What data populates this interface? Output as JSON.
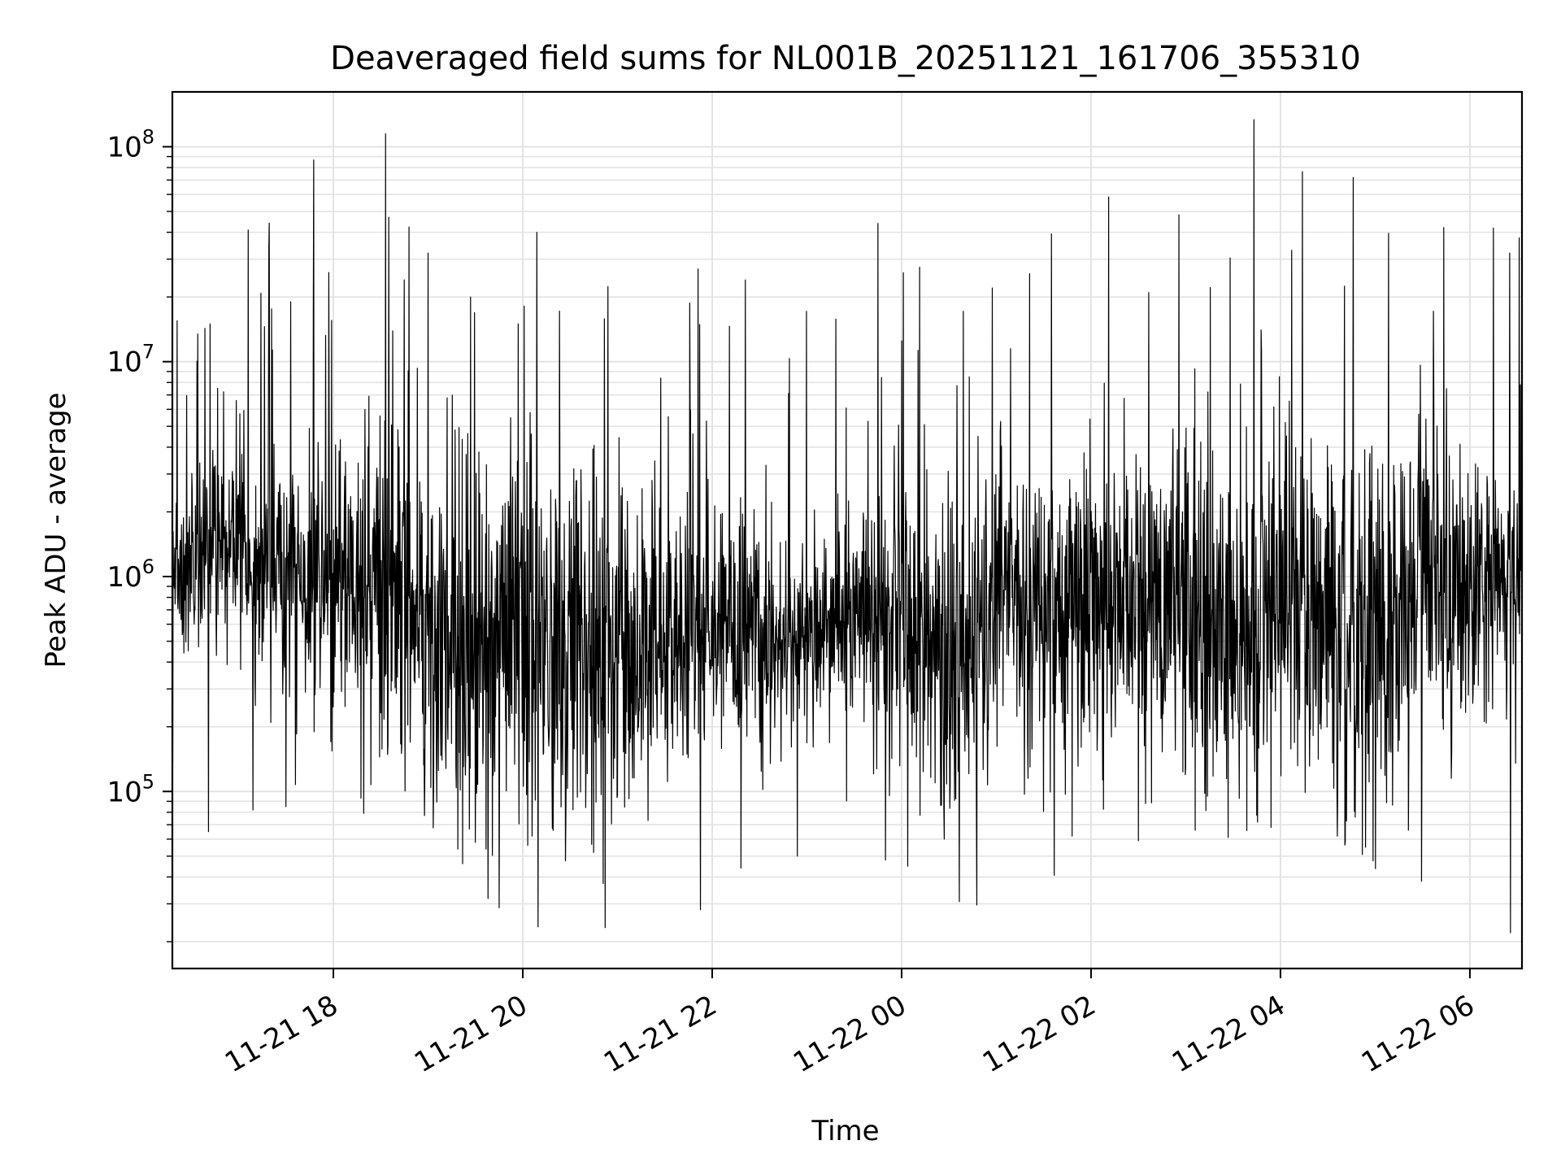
{
  "chart_data": {
    "type": "line",
    "title": "Deaveraged field sums for NL001B_20251121_161706_355310",
    "xlabel": "Time",
    "ylabel": "Peak ADU - average",
    "yscale": "log",
    "ylim": [
      15000,
      180000000
    ],
    "xlim_hours_from_2025_11_21_00_00": [
      16.3,
      30.55
    ],
    "grid": true,
    "xticks": [
      {
        "label": "11-21 18",
        "hour": 18
      },
      {
        "label": "11-21 20",
        "hour": 20
      },
      {
        "label": "11-21 22",
        "hour": 22
      },
      {
        "label": "11-22 00",
        "hour": 24
      },
      {
        "label": "11-22 02",
        "hour": 26
      },
      {
        "label": "11-22 04",
        "hour": 28
      },
      {
        "label": "11-22 06",
        "hour": 30
      }
    ],
    "yticks": [
      {
        "base": "10",
        "exp": "5",
        "value": 100000
      },
      {
        "base": "10",
        "exp": "6",
        "value": 1000000
      },
      {
        "base": "10",
        "exp": "7",
        "value": 10000000
      },
      {
        "base": "10",
        "exp": "8",
        "value": 100000000
      }
    ],
    "series": [
      {
        "name": "peak_adu_minus_average",
        "color": "#000000",
        "n_points": 3400,
        "baseline_profile": [
          {
            "hour": 16.3,
            "median": 1100000,
            "spread_decades": 0.18
          },
          {
            "hour": 17.0,
            "median": 1300000,
            "spread_decades": 0.25
          },
          {
            "hour": 18.0,
            "median": 900000,
            "spread_decades": 0.35
          },
          {
            "hour": 19.0,
            "median": 650000,
            "spread_decades": 0.45
          },
          {
            "hour": 20.0,
            "median": 550000,
            "spread_decades": 0.5
          },
          {
            "hour": 21.0,
            "median": 500000,
            "spread_decades": 0.42
          },
          {
            "hour": 21.5,
            "median": 420000,
            "spread_decades": 0.3
          },
          {
            "hour": 22.0,
            "median": 700000,
            "spread_decades": 0.3
          },
          {
            "hour": 22.8,
            "median": 450000,
            "spread_decades": 0.18
          },
          {
            "hour": 23.0,
            "median": 550000,
            "spread_decades": 0.22
          },
          {
            "hour": 24.0,
            "median": 700000,
            "spread_decades": 0.3
          },
          {
            "hour": 24.5,
            "median": 400000,
            "spread_decades": 0.45
          },
          {
            "hour": 25.0,
            "median": 800000,
            "spread_decades": 0.3
          },
          {
            "hour": 26.0,
            "median": 650000,
            "spread_decades": 0.35
          },
          {
            "hour": 26.6,
            "median": 900000,
            "spread_decades": 0.3
          },
          {
            "hour": 27.5,
            "median": 450000,
            "spread_decades": 0.45
          },
          {
            "hour": 28.0,
            "median": 700000,
            "spread_decades": 0.35
          },
          {
            "hour": 29.0,
            "median": 550000,
            "spread_decades": 0.45
          },
          {
            "hour": 29.6,
            "median": 1000000,
            "spread_decades": 0.35
          },
          {
            "hour": 30.55,
            "median": 900000,
            "spread_decades": 0.25
          }
        ],
        "peaks": [
          {
            "hour": 16.35,
            "value": 15500000
          },
          {
            "hour": 16.7,
            "value": 15000000
          },
          {
            "hour": 17.1,
            "value": 41000000
          },
          {
            "hour": 17.32,
            "value": 34000000
          },
          {
            "hour": 17.55,
            "value": 19000000
          },
          {
            "hour": 17.95,
            "value": 26000000
          },
          {
            "hour": 18.55,
            "value": 115000000
          },
          {
            "hour": 18.75,
            "value": 24000000
          },
          {
            "hour": 19.0,
            "value": 32000000
          },
          {
            "hour": 19.45,
            "value": 20000000
          },
          {
            "hour": 19.95,
            "value": 15000000
          },
          {
            "hour": 20.15,
            "value": 40000000
          },
          {
            "hour": 20.75,
            "value": 23000000
          },
          {
            "hour": 21.85,
            "value": 27000000
          },
          {
            "hour": 22.35,
            "value": 24000000
          },
          {
            "hour": 23.75,
            "value": 44000000
          },
          {
            "hour": 24.0,
            "value": 12500000
          },
          {
            "hour": 25.15,
            "value": 11500000
          },
          {
            "hour": 27.8,
            "value": 11200000
          },
          {
            "hour": 28.12,
            "value": 33000000
          },
          {
            "hour": 30.42,
            "value": 32000000
          }
        ],
        "dips": [
          {
            "hour": 16.68,
            "value": 65000
          },
          {
            "hour": 17.15,
            "value": 82000
          },
          {
            "hour": 17.5,
            "value": 85000
          },
          {
            "hour": 19.5,
            "value": 58000
          },
          {
            "hour": 20.1,
            "value": 62000
          },
          {
            "hour": 20.75,
            "value": 52000
          },
          {
            "hour": 22.9,
            "value": 50000
          },
          {
            "hour": 24.45,
            "value": 60000
          },
          {
            "hour": 25.8,
            "value": 62000
          },
          {
            "hour": 26.5,
            "value": 59000
          },
          {
            "hour": 27.1,
            "value": 66000
          },
          {
            "hour": 27.9,
            "value": 68000
          },
          {
            "hour": 28.6,
            "value": 62000
          },
          {
            "hour": 28.9,
            "value": 55000
          },
          {
            "hour": 29.35,
            "value": 66000
          },
          {
            "hour": 30.43,
            "value": 22000
          }
        ]
      }
    ]
  }
}
